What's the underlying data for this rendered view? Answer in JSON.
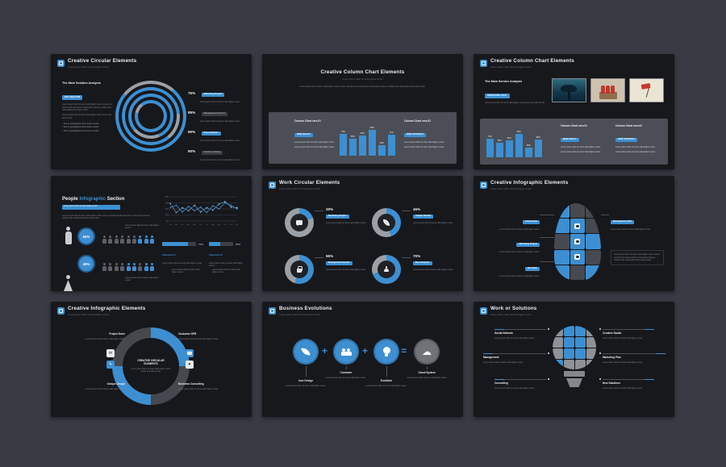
{
  "colors": {
    "accent": "#3d8fd1",
    "ring_gray": "#9aa0a6",
    "page_bg": "#383b43",
    "slide_bg": "#17181c",
    "panel_bg": "#4b4e56"
  },
  "icons": {
    "mail": "✉",
    "pencil": "✎",
    "heart": "♥",
    "cloud": "☁"
  },
  "ph": {
    "sub": "Lorem ipsum dolor sit amet higher center",
    "body": "Lorem ipsum dolor sit amet nulla higher center, donec sed odio dui elit elementum consectetur posuere cubilia curae nulla facilisi lorem ipsum dolor.",
    "small": "Lorem ipsum dolor sit amet nulla higher center donec sed odio dui elit.",
    "tiny": "Lorem ipsum dolor sit amet nulla higher center."
  },
  "slides": {
    "circular": {
      "title": "Creative Circular Elements",
      "left": {
        "heading": "The Main Solution Analysis",
        "badge": "KEY ANALYSIS",
        "bullets": [
          "Text in paragraphs lorem ipsum center",
          "Text in paragraphs lorem ipsum center",
          "Text in paragraphs lorem ipsum center"
        ]
      },
      "stats": [
        {
          "pct": "75%",
          "label": "Marketing Project"
        },
        {
          "pct": "85%",
          "label": "Management Process"
        },
        {
          "pct": "80%",
          "label": "Easy Analysis"
        },
        {
          "pct": "90%",
          "label": "Service Including"
        }
      ]
    },
    "column_v1": {
      "title": "Creative Column Chart Elements",
      "col1": {
        "heading": "Column Chart vers.01",
        "badge": "NEW GOALS"
      },
      "col2": {
        "heading": "Column Chart vers.02",
        "badge": "NEW STRATEGY"
      }
    },
    "column_v2": {
      "title": "Creative Column Chart Elements",
      "left": {
        "heading": "The Main Service Analysis",
        "badge": "MARKETING GOAL"
      },
      "col1": {
        "heading": "Column Chart vers.01",
        "badge": "NEW GOALS"
      },
      "col2": {
        "heading": "Column Chart vers.02",
        "badge": "NEW STRATEGY"
      }
    },
    "people": {
      "title_parts": [
        "People ",
        "Infographic ",
        "Section"
      ],
      "badge_text": "Lorem ipsum dolor sit amet higher center",
      "rows": [
        {
          "pct": "64%",
          "pattern": [
            0,
            0,
            0,
            0,
            0,
            0,
            1,
            1,
            1
          ]
        },
        {
          "pct": "46%",
          "pattern": [
            0,
            0,
            0,
            0,
            1,
            1,
            0,
            1,
            1
          ]
        }
      ],
      "progress": [
        {
          "pct": "75%"
        },
        {
          "pct": "45%"
        }
      ],
      "notes": [
        {
          "label": "Statement 01"
        },
        {
          "label": "Statement 02"
        }
      ]
    },
    "work": {
      "title": "Work Circular Elements",
      "donuts": [
        {
          "pct_label": "20%",
          "badge": "Marketing Project",
          "icon": "chat"
        },
        {
          "pct_label": "45%",
          "badge": "Unique Identity",
          "icon": "leaf"
        },
        {
          "pct_label": "55%",
          "badge": "Management Service",
          "icon": "lock"
        },
        {
          "pct_label": "70%",
          "badge": "Best Analysis",
          "icon": "person"
        }
      ]
    },
    "head": {
      "title": "Creative Infographic Elements",
      "tiles": [
        "b",
        "g",
        "g",
        "b",
        "i",
        "g",
        "g",
        "i",
        "b",
        "b",
        "i",
        "g",
        "b",
        "g",
        "b"
      ],
      "callouts_left": [
        {
          "badge": "Great Goals"
        },
        {
          "badge": "Marketing Project"
        },
        {
          "badge": "Best Idea"
        }
      ],
      "callout_right": {
        "badge": "Management CEO"
      }
    },
    "donut_big": {
      "title": "Creative Infographic Elements",
      "center_title": "CREATIVE CIRCULAR ELEMENTS",
      "corners": [
        {
          "label": "Project Done"
        },
        {
          "label": "Customer SPR"
        },
        {
          "label": "Unique Design"
        },
        {
          "label": "Business Consulting"
        }
      ]
    },
    "evolution": {
      "title": "Business Evolutions",
      "steps": [
        {
          "label": "Icon Design"
        },
        {
          "label": "Costumer"
        },
        {
          "label": "Evolution"
        },
        {
          "label": "Cloud System"
        }
      ],
      "ops": [
        "+",
        "+",
        "="
      ]
    },
    "bulb": {
      "title": "Work or Solutions",
      "tiles": [
        "g",
        "b",
        "b",
        "g",
        "g",
        "b",
        "b",
        "g",
        "g",
        "b",
        "b",
        "g",
        "b",
        "g",
        "g",
        "g"
      ],
      "left": [
        {
          "label": "Social Network"
        },
        {
          "label": "Management"
        },
        {
          "label": "Consulting"
        }
      ],
      "right": [
        {
          "label": "Creative Studio"
        },
        {
          "label": "Marketing Plan"
        },
        {
          "label": "New Solutions"
        }
      ]
    }
  },
  "chart_data": [
    {
      "id": "column-chart-v1",
      "type": "bar",
      "categories": [
        "01",
        "02",
        "03",
        "04",
        "05",
        "06"
      ],
      "values": [
        74,
        58,
        68,
        88,
        35,
        71
      ],
      "unit": "%",
      "ylim": [
        0,
        100
      ],
      "title": "Column Chart vers.01 / vers.02",
      "legend": "none"
    },
    {
      "id": "column-chart-v2",
      "type": "bar",
      "categories": [
        "01",
        "02",
        "03",
        "04",
        "05",
        "06"
      ],
      "values": [
        70,
        55,
        65,
        88,
        35,
        68
      ],
      "unit": "%",
      "ylim": [
        0,
        100
      ],
      "title": "Column Chart vers.01 / vers.02",
      "legend": "none"
    },
    {
      "id": "people-trend",
      "type": "line",
      "x": [
        "Jan",
        "Feb",
        "Mar",
        "Apr",
        "May",
        "Jun",
        "Jul",
        "Aug",
        "Sep",
        "Oct",
        "Nov",
        "Dec"
      ],
      "series": [
        {
          "name": "Series A",
          "values": [
            58,
            28,
            44,
            34,
            52,
            30,
            44,
            36,
            56,
            64,
            46,
            44
          ]
        },
        {
          "name": "Series B",
          "values": [
            44,
            52,
            30,
            48,
            34,
            46,
            28,
            50,
            40,
            60,
            52,
            40
          ]
        }
      ],
      "ylim": [
        0,
        80
      ],
      "yticks": [
        "80%",
        "60%",
        "40%",
        "20%",
        "0%"
      ],
      "grid": true,
      "legend": "none"
    },
    {
      "id": "creative-circular-rings",
      "type": "donut",
      "values": [
        75,
        85,
        80,
        90
      ],
      "starts": [
        40,
        140,
        230,
        320
      ]
    },
    {
      "id": "work-circular-donuts",
      "type": "donut",
      "values": [
        20,
        45,
        55,
        70
      ]
    },
    {
      "id": "people-progress",
      "type": "bar",
      "orientation": "horizontal",
      "values": [
        75,
        45
      ],
      "unit": "%",
      "ylim": [
        0,
        100
      ]
    }
  ]
}
